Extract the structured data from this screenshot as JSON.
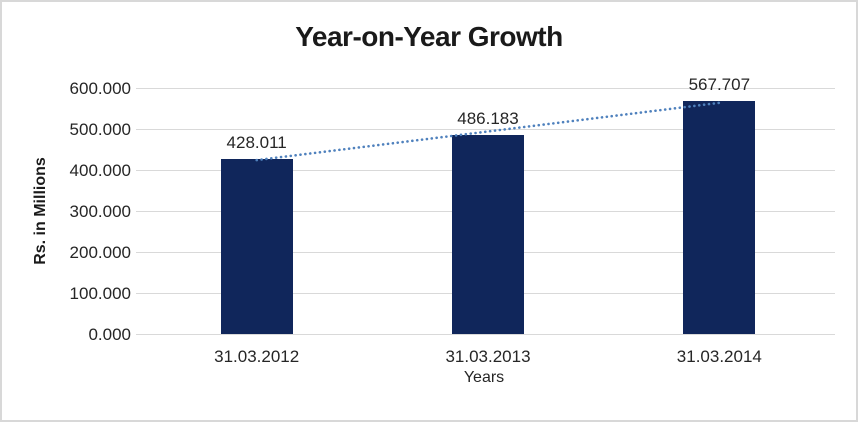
{
  "chart_data": {
    "type": "bar",
    "title": "Year-on-Year Growth",
    "xlabel": "Years",
    "ylabel": "Rs. in Millions",
    "categories": [
      "31.03.2012",
      "31.03.2013",
      "31.03.2014"
    ],
    "values": [
      428.011,
      486.183,
      567.707
    ],
    "value_labels": [
      "428.011",
      "486.183",
      "567.707"
    ],
    "ylim": [
      0,
      600
    ],
    "ytick_step": 100,
    "ytick_labels": [
      "0.000",
      "100.000",
      "200.000",
      "300.000",
      "400.000",
      "500.000",
      "600.000"
    ],
    "grid": true,
    "legend": "none",
    "trendline": {
      "type": "linear",
      "style": "dotted"
    },
    "colors": {
      "bar": "#10265b",
      "trendline": "#4f81bd",
      "gridline": "#d9d9d9",
      "text": "#262626",
      "title": "#1a1a1a",
      "frame_border": "#d8d8d8"
    }
  }
}
